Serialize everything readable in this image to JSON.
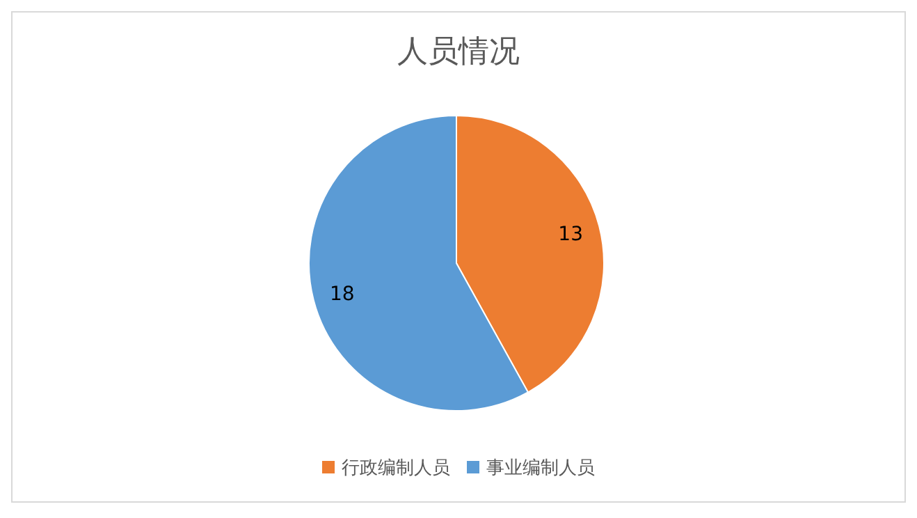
{
  "chart_data": {
    "type": "pie",
    "title": "人员情况",
    "categories": [
      "行政编制人员",
      "事业编制人员"
    ],
    "values": [
      13,
      18
    ],
    "colors": [
      "#ed7d31",
      "#5b9bd5"
    ],
    "data_labels": true,
    "legend": "bottom"
  }
}
